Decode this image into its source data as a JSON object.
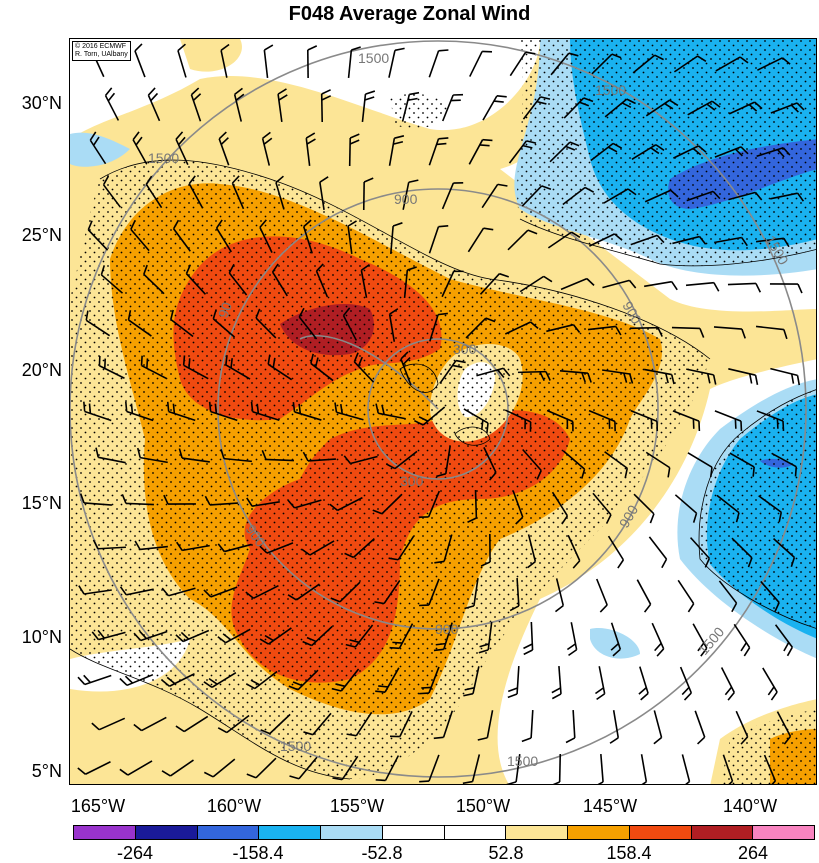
{
  "title": "F048 Average Zonal Wind",
  "credit": {
    "line1": "© 2016 ECMWF",
    "line2": "R. Torn, UAlbany"
  },
  "latitude_labels": [
    "30°N",
    "25°N",
    "20°N",
    "15°N",
    "10°N",
    "5°N"
  ],
  "longitude_labels": [
    "165°W",
    "160°W",
    "155°W",
    "150°W",
    "145°W",
    "140°W"
  ],
  "colorbar": {
    "labels": [
      "-264",
      "-158.4",
      "-52.8",
      "52.8",
      "158.4",
      "264"
    ],
    "colors": [
      "#9933cc",
      "#1a1a99",
      "#3366dd",
      "#1ab2f0",
      "#aadcf5",
      "#ffffff",
      "#ffffff",
      "#fce596",
      "#f6a000",
      "#f04a10",
      "#b01e23",
      "#f884c0"
    ]
  },
  "contour_labels": [
    "1500",
    "1500",
    "1500",
    "1500",
    "1500",
    "1500",
    "1500",
    "900",
    "900",
    "900",
    "900",
    "900",
    "300",
    "300"
  ],
  "center_label": "90"
}
